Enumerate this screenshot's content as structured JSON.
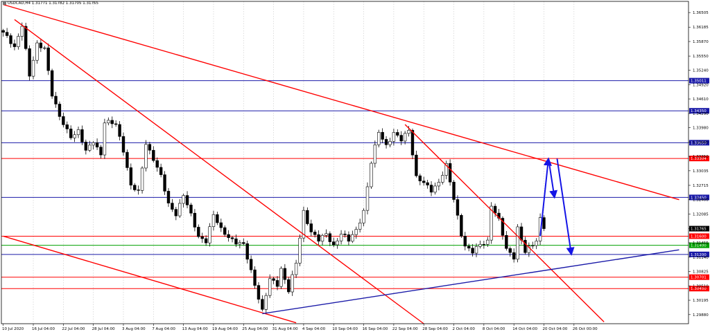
{
  "window": {
    "title": "USDCAD,H4",
    "ohlc": "1.31771 1.31782 1.31705 1.31765"
  },
  "colors": {
    "candle": "#000000",
    "grid": "#c8c8c8",
    "red_line": "#ff0000",
    "blue_line": "#1a1aa8",
    "green_line": "#00a000",
    "arrow": "#1414e6",
    "current_price_tag": "#000000"
  },
  "chart_data": {
    "type": "candlestick",
    "symbol": "USDCAD",
    "timeframe": "H4",
    "x_labels": [
      "10 Jul 2020",
      "16 Jul 04:00",
      "22 Jul 04:00",
      "28 Jul 04:00",
      "3 Aug 04:00",
      "7 Aug 04:00",
      "13 Aug 04:00",
      "19 Aug 04:00",
      "25 Aug 04:00",
      "31 Aug 04:00",
      "4 Sep 04:00",
      "10 Sep 04:00",
      "16 Sep 04:00",
      "22 Sep 04:00",
      "28 Sep 04:00",
      "2 Oct 04:00",
      "8 Oct 04:00",
      "14 Oct 04:00",
      "20 Oct 04:00",
      "26 Oct 00:00"
    ],
    "y_ticks": [
      "1.36505",
      "1.36185",
      "1.35870",
      "1.35550",
      "1.35240",
      "1.34920",
      "1.34610",
      "1.34290",
      "1.33980",
      "1.33660",
      "1.33350",
      "1.33035",
      "1.32715",
      "1.32400",
      "1.32085",
      "1.31765",
      "1.31455",
      "1.31140",
      "1.30825",
      "1.30510",
      "1.30195",
      "1.29880"
    ],
    "ylim": [
      1.2968,
      1.3675
    ],
    "current_price": 1.31765,
    "horizontal_levels": [
      {
        "price": 1.35011,
        "label": "1.35011",
        "color": "#1a1aa8"
      },
      {
        "price": 1.3435,
        "label": "1.34350",
        "color": "#1a1aa8"
      },
      {
        "price": 1.3365,
        "label": "1.33650",
        "color": "#1a1aa8"
      },
      {
        "price": 1.33304,
        "label": "1.33304",
        "color": "#ff0000"
      },
      {
        "price": 1.3245,
        "label": "1.32450",
        "color": "#1a1aa8"
      },
      {
        "price": 1.316,
        "label": "1.31600",
        "color": "#ff0000"
      },
      {
        "price": 1.314,
        "label": "1.31400",
        "color": "#00a000"
      },
      {
        "price": 1.312,
        "label": "1.31200",
        "color": "#1a1aa8"
      },
      {
        "price": 1.30701,
        "label": "1.30701",
        "color": "#ff0000"
      },
      {
        "price": 1.3045,
        "label": "1.30450",
        "color": "#ff0000"
      }
    ],
    "trendlines": [
      {
        "color": "#ff0000",
        "from": {
          "bar": 0,
          "price": 1.3668
        },
        "to": {
          "bar": 180,
          "price": 1.324
        }
      },
      {
        "color": "#ff0000",
        "from": {
          "bar": 3,
          "price": 1.3635
        },
        "to": {
          "bar": 112,
          "price": 1.2968
        }
      },
      {
        "color": "#ff0000",
        "from": {
          "bar": 0,
          "price": 1.316
        },
        "to": {
          "bar": 78,
          "price": 1.297
        }
      },
      {
        "color": "#ff0000",
        "from": {
          "bar": 107,
          "price": 1.3405
        },
        "to": {
          "bar": 160,
          "price": 1.2972
        }
      },
      {
        "color": "#1a1aa8",
        "from": {
          "bar": 69,
          "price": 1.299
        },
        "to": {
          "bar": 180,
          "price": 1.313
        }
      }
    ],
    "forecast_arrows": [
      {
        "from": {
          "bar": 143,
          "price": 1.316
        },
        "to": {
          "bar": 145.2,
          "price": 1.333
        }
      },
      {
        "from": {
          "bar": 145.2,
          "price": 1.333
        },
        "to": {
          "bar": 146.8,
          "price": 1.3245
        }
      },
      {
        "from": {
          "bar": 147.5,
          "price": 1.333
        },
        "to": {
          "bar": 151.3,
          "price": 1.312
        }
      }
    ],
    "anchors": [
      {
        "bar": 0,
        "price": 1.3605
      },
      {
        "bar": 3,
        "price": 1.3575
      },
      {
        "bar": 5,
        "price": 1.3625
      },
      {
        "bar": 7,
        "price": 1.351
      },
      {
        "bar": 9,
        "price": 1.358
      },
      {
        "bar": 11,
        "price": 1.3575
      },
      {
        "bar": 13,
        "price": 1.347
      },
      {
        "bar": 15,
        "price": 1.342
      },
      {
        "bar": 18,
        "price": 1.338
      },
      {
        "bar": 20,
        "price": 1.339
      },
      {
        "bar": 22,
        "price": 1.3345
      },
      {
        "bar": 24,
        "price": 1.337
      },
      {
        "bar": 26,
        "price": 1.334
      },
      {
        "bar": 27,
        "price": 1.341
      },
      {
        "bar": 30,
        "price": 1.3405
      },
      {
        "bar": 32,
        "price": 1.335
      },
      {
        "bar": 34,
        "price": 1.327
      },
      {
        "bar": 36,
        "price": 1.3255
      },
      {
        "bar": 38,
        "price": 1.3365
      },
      {
        "bar": 40,
        "price": 1.333
      },
      {
        "bar": 42,
        "price": 1.329
      },
      {
        "bar": 44,
        "price": 1.323
      },
      {
        "bar": 46,
        "price": 1.321
      },
      {
        "bar": 48,
        "price": 1.325
      },
      {
        "bar": 50,
        "price": 1.3205
      },
      {
        "bar": 52,
        "price": 1.316
      },
      {
        "bar": 54,
        "price": 1.315
      },
      {
        "bar": 56,
        "price": 1.3205
      },
      {
        "bar": 58,
        "price": 1.3175
      },
      {
        "bar": 60,
        "price": 1.316
      },
      {
        "bar": 62,
        "price": 1.3145
      },
      {
        "bar": 64,
        "price": 1.314
      },
      {
        "bar": 66,
        "price": 1.3085
      },
      {
        "bar": 68,
        "price": 1.3025
      },
      {
        "bar": 69,
        "price": 1.2995
      },
      {
        "bar": 71,
        "price": 1.3065
      },
      {
        "bar": 73,
        "price": 1.3055
      },
      {
        "bar": 74,
        "price": 1.309
      },
      {
        "bar": 76,
        "price": 1.304
      },
      {
        "bar": 78,
        "price": 1.31
      },
      {
        "bar": 80,
        "price": 1.3215
      },
      {
        "bar": 82,
        "price": 1.317
      },
      {
        "bar": 84,
        "price": 1.315
      },
      {
        "bar": 86,
        "price": 1.3165
      },
      {
        "bar": 88,
        "price": 1.314
      },
      {
        "bar": 90,
        "price": 1.3165
      },
      {
        "bar": 92,
        "price": 1.315
      },
      {
        "bar": 94,
        "price": 1.3175
      },
      {
        "bar": 96,
        "price": 1.3215
      },
      {
        "bar": 98,
        "price": 1.332
      },
      {
        "bar": 100,
        "price": 1.339
      },
      {
        "bar": 102,
        "price": 1.336
      },
      {
        "bar": 104,
        "price": 1.3385
      },
      {
        "bar": 106,
        "price": 1.337
      },
      {
        "bar": 108,
        "price": 1.3395
      },
      {
        "bar": 110,
        "price": 1.329
      },
      {
        "bar": 112,
        "price": 1.3275
      },
      {
        "bar": 114,
        "price": 1.326
      },
      {
        "bar": 116,
        "price": 1.328
      },
      {
        "bar": 118,
        "price": 1.3315
      },
      {
        "bar": 120,
        "price": 1.324
      },
      {
        "bar": 122,
        "price": 1.3165
      },
      {
        "bar": 123,
        "price": 1.314
      },
      {
        "bar": 125,
        "price": 1.3125
      },
      {
        "bar": 127,
        "price": 1.314
      },
      {
        "bar": 129,
        "price": 1.315
      },
      {
        "bar": 130,
        "price": 1.323
      },
      {
        "bar": 132,
        "price": 1.3195
      },
      {
        "bar": 134,
        "price": 1.313
      },
      {
        "bar": 136,
        "price": 1.3115
      },
      {
        "bar": 137,
        "price": 1.318
      },
      {
        "bar": 139,
        "price": 1.3125
      },
      {
        "bar": 141,
        "price": 1.314
      },
      {
        "bar": 142,
        "price": 1.315
      },
      {
        "bar": 143,
        "price": 1.32
      },
      {
        "bar": 144,
        "price": 1.31765
      }
    ]
  }
}
